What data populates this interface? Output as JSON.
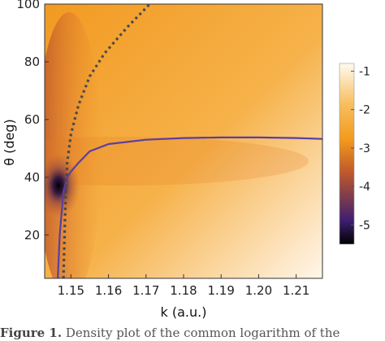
{
  "chart_data": {
    "type": "heatmap",
    "xlabel": "k (a.u.)",
    "ylabel": "θ (deg)",
    "xlim": [
      1.143,
      1.217
    ],
    "ylim": [
      5,
      100
    ],
    "x_ticks": [
      1.15,
      1.16,
      1.17,
      1.18,
      1.19,
      1.2,
      1.21
    ],
    "x_tick_labels": [
      "1.15",
      "1.16",
      "1.17",
      "1.18",
      "1.19",
      "1.20",
      "1.21"
    ],
    "y_ticks": [
      20,
      40,
      60,
      80,
      100
    ],
    "y_tick_labels": [
      "20",
      "40",
      "60",
      "80",
      "100"
    ],
    "colorbar": {
      "range": [
        -5.5,
        -0.8
      ],
      "ticks": [
        -1,
        -2,
        -3,
        -4,
        -5
      ],
      "tick_labels": [
        "-1",
        "-2",
        "-3",
        "-4",
        "-5"
      ],
      "colors_low_to_high": [
        "#000000",
        "#3d1f70",
        "#c0592a",
        "#f39a1e",
        "#f7c060",
        "#fffaf0"
      ]
    },
    "minimum_location": {
      "k": 1.147,
      "theta": 38
    },
    "curves": [
      {
        "style": "solid",
        "color": "#5a3ea3",
        "points": [
          [
            1.1465,
            5
          ],
          [
            1.147,
            20
          ],
          [
            1.148,
            35
          ],
          [
            1.149,
            40
          ],
          [
            1.15,
            42
          ],
          [
            1.152,
            45
          ],
          [
            1.155,
            49
          ],
          [
            1.16,
            51.5
          ],
          [
            1.17,
            53
          ],
          [
            1.18,
            53.6
          ],
          [
            1.19,
            53.8
          ],
          [
            1.2,
            53.8
          ],
          [
            1.21,
            53.6
          ],
          [
            1.217,
            53.3
          ]
        ]
      },
      {
        "style": "dotted",
        "color": "#4a4a4a",
        "points": [
          [
            1.148,
            5
          ],
          [
            1.1485,
            30
          ],
          [
            1.149,
            45
          ],
          [
            1.15,
            55
          ],
          [
            1.152,
            65
          ],
          [
            1.155,
            75
          ],
          [
            1.159,
            83
          ],
          [
            1.165,
            92
          ],
          [
            1.171,
            100
          ]
        ]
      }
    ]
  },
  "caption": {
    "label": "Figure 1.",
    "text": "Density plot of the common logarithm of the"
  }
}
